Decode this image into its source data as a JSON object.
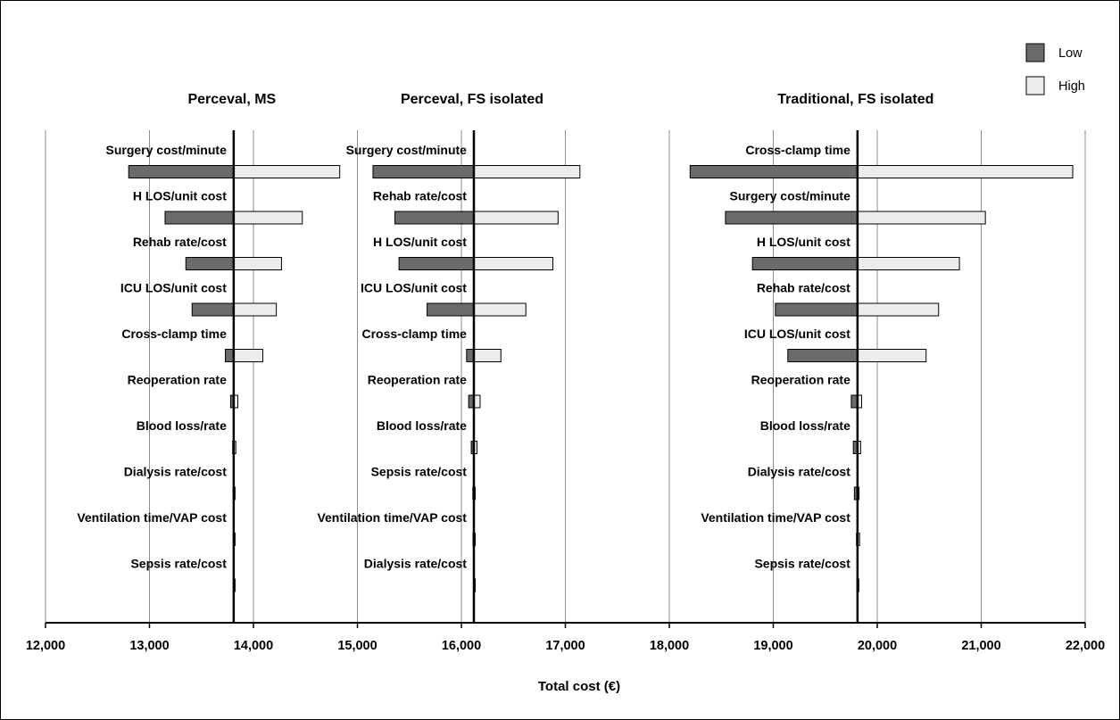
{
  "chart_data": {
    "type": "tornado",
    "xlabel": "Total cost (€)",
    "xlim": [
      12000,
      22000
    ],
    "x_ticks": [
      12000,
      13000,
      14000,
      15000,
      16000,
      17000,
      18000,
      19000,
      20000,
      21000,
      22000
    ],
    "x_tick_labels": [
      "12,000",
      "13,000",
      "14,000",
      "15,000",
      "16,000",
      "17,000",
      "18,000",
      "19,000",
      "20,000",
      "21,000",
      "22,000"
    ],
    "grid": true,
    "legend": {
      "placement": "top-right",
      "entries": [
        {
          "name": "Low",
          "color": "#6b6b6b"
        },
        {
          "name": "High",
          "color": "#ececec"
        }
      ]
    },
    "panels": [
      {
        "title": "Perceval, MS",
        "base": 13810,
        "bars": [
          {
            "label": "Surgery cost/minute",
            "low": 12800,
            "high": 14830
          },
          {
            "label": "H LOS/unit cost",
            "low": 13150,
            "high": 14470
          },
          {
            "label": "Rehab rate/cost",
            "low": 13350,
            "high": 14270
          },
          {
            "label": "ICU LOS/unit cost",
            "low": 13410,
            "high": 14220
          },
          {
            "label": "Cross-clamp time",
            "low": 13730,
            "high": 14090
          },
          {
            "label": "Reoperation rate",
            "low": 13780,
            "high": 13850
          },
          {
            "label": "Blood loss/rate",
            "low": 13800,
            "high": 13830
          },
          {
            "label": "Dialysis rate/cost",
            "low": 13805,
            "high": 13820
          },
          {
            "label": "Ventilation time/VAP cost",
            "low": 13808,
            "high": 13814
          },
          {
            "label": "Sepsis rate/cost",
            "low": 13809,
            "high": 13812
          }
        ]
      },
      {
        "title": "Perceval, FS isolated",
        "base": 16120,
        "bars": [
          {
            "label": "Surgery cost/minute",
            "low": 15150,
            "high": 17140
          },
          {
            "label": "Rehab rate/cost",
            "low": 15360,
            "high": 16930
          },
          {
            "label": "H LOS/unit cost",
            "low": 15400,
            "high": 16880
          },
          {
            "label": "ICU LOS/unit cost",
            "low": 15670,
            "high": 16620
          },
          {
            "label": "Cross-clamp time",
            "low": 16050,
            "high": 16380
          },
          {
            "label": "Reoperation rate",
            "low": 16070,
            "high": 16180
          },
          {
            "label": "Blood loss/rate",
            "low": 16095,
            "high": 16150
          },
          {
            "label": "Sepsis rate/cost",
            "low": 16110,
            "high": 16130
          },
          {
            "label": "Ventilation time/VAP cost",
            "low": 16112,
            "high": 16128
          },
          {
            "label": "Dialysis rate/cost",
            "low": 16116,
            "high": 16124
          }
        ]
      },
      {
        "title": "Traditional, FS isolated",
        "base": 19810,
        "bars": [
          {
            "label": "Cross-clamp time",
            "low": 18200,
            "high": 21880
          },
          {
            "label": "Surgery cost/minute",
            "low": 18540,
            "high": 21040
          },
          {
            "label": "H LOS/unit cost",
            "low": 18800,
            "high": 20790
          },
          {
            "label": "Rehab rate/cost",
            "low": 19020,
            "high": 20590
          },
          {
            "label": "ICU LOS/unit cost",
            "low": 19140,
            "high": 20470
          },
          {
            "label": "Reoperation rate",
            "low": 19750,
            "high": 19850
          },
          {
            "label": "Blood loss/rate",
            "low": 19770,
            "high": 19840
          },
          {
            "label": "Dialysis rate/cost",
            "low": 19780,
            "high": 19825
          },
          {
            "label": "Ventilation time/VAP cost",
            "low": 19800,
            "high": 19830
          },
          {
            "label": "Sepsis rate/cost",
            "low": 19805,
            "high": 19815
          }
        ]
      }
    ]
  }
}
